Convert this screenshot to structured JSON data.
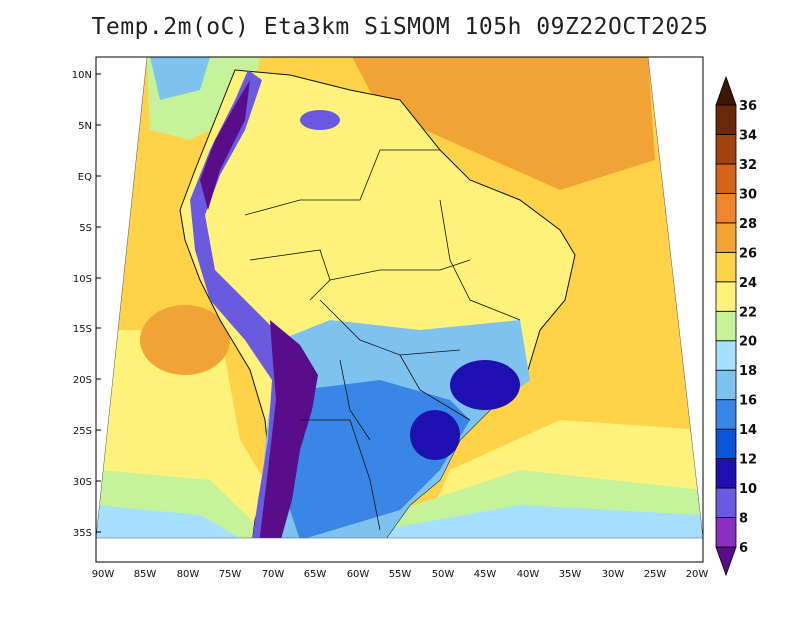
{
  "title": "Temp.2m(oC) Eta3km SiSMOM 105h 09Z22OCT2025",
  "lat_labels": [
    "10N",
    "5N",
    "EQ",
    "5S",
    "10S",
    "15S",
    "20S",
    "25S",
    "30S",
    "35S"
  ],
  "lon_labels": [
    "90W",
    "85W",
    "80W",
    "75W",
    "70W",
    "65W",
    "60W",
    "55W",
    "50W",
    "45W",
    "40W",
    "35W",
    "30W",
    "25W",
    "20W"
  ],
  "colorbar": {
    "min_label": "6",
    "max_label": "36",
    "levels": [
      "6",
      "8",
      "10",
      "12",
      "14",
      "16",
      "18",
      "20",
      "22",
      "24",
      "26",
      "28",
      "30",
      "32",
      "34",
      "36"
    ],
    "colors": [
      "#5a0d8a",
      "#8a2fc0",
      "#6a5ae0",
      "#1e10b0",
      "#0a54d8",
      "#3a86e6",
      "#7ec2f0",
      "#a6e0ff",
      "#c6f39a",
      "#fff27a",
      "#ffd248",
      "#f2a336",
      "#ee8630",
      "#d4641c",
      "#a2420f",
      "#6b2808",
      "#3f1604"
    ]
  },
  "colors": {
    "ocean_warm": "#ffd248",
    "ocean_hot": "#f2a336",
    "ocean_mild": "#fff27a",
    "land_tropics": "#fff27a",
    "coast_cool": "#a6e0ff",
    "south_cool": "#3a86e6",
    "andes_cold": "#5a0d8a",
    "andes_cool": "#8a2fc0"
  }
}
